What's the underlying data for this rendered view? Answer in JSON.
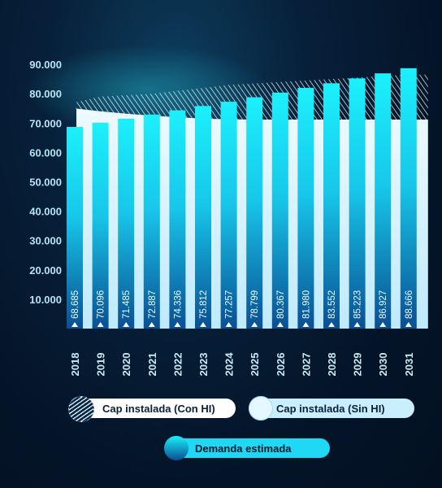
{
  "chart_data": {
    "type": "bar",
    "categories": [
      "2018",
      "2019",
      "2020",
      "2021",
      "2022",
      "2023",
      "2024",
      "2025",
      "2026",
      "2027",
      "2028",
      "2029",
      "2030",
      "2031"
    ],
    "series": [
      {
        "name": "Demanda estimada",
        "values": [
          68685,
          70096,
          71485,
          72887,
          74336,
          75812,
          77257,
          78799,
          80367,
          81980,
          83552,
          85223,
          86927,
          88666
        ]
      },
      {
        "name": "Cap instalada (Sin HI)",
        "values": [
          75000,
          74000,
          73200,
          72500,
          72000,
          71500,
          71300,
          71200,
          71200,
          71200,
          71200,
          71200,
          71200,
          71200
        ]
      },
      {
        "name": "Cap instalada (Con HI)",
        "values": [
          77000,
          79000,
          79500,
          80000,
          81000,
          82000,
          83000,
          83500,
          84000,
          84500,
          85000,
          85500,
          86000,
          86500
        ]
      }
    ],
    "data_labels": [
      "68.685",
      "70.096",
      "71.485",
      "72.887",
      "74.336",
      "75.812",
      "77.257",
      "78.799",
      "80.367",
      "81.980",
      "83.552",
      "85.223",
      "86.927",
      "88.666"
    ],
    "yticks": [
      "10.000",
      "20.000",
      "30.000",
      "40.000",
      "50.000",
      "60.000",
      "70.000",
      "80.000",
      "90.000"
    ],
    "ytick_values": [
      10000,
      20000,
      30000,
      40000,
      50000,
      60000,
      70000,
      80000,
      90000
    ],
    "ylim": [
      0,
      90000
    ],
    "title": "",
    "xlabel": "",
    "ylabel": "",
    "grid": false,
    "legend_position": "bottom"
  },
  "legend": {
    "con_hi": "Cap instalada (Con HI)",
    "sin_hi": "Cap instalada (Sin HI)",
    "demanda": "Demanda estimada"
  },
  "colors": {
    "bar_top": "#19e8f8",
    "bar_bottom": "#0a5aa0",
    "sin_hi_area": "#d6f4ff",
    "con_hi_hatch": "#dff6ff",
    "text": "#bfe9f6",
    "background": "#041428"
  }
}
